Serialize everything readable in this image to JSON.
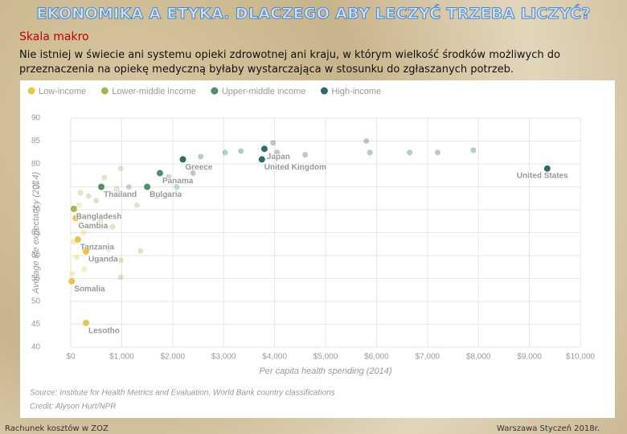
{
  "slide": {
    "title": "EKONOMIKA A ETYKA. DLACZEGO ABY LECZYĆ TRZEBA LICZYĆ?",
    "subtitle": "Skala makro",
    "text": "Nie istniej w świecie ani systemu opieki zdrowotnej ani kraju, w którym wielkość środków możliwych do przeznaczenia na opiekę medyczną byłaby wystarczająca w stosunku do zgłaszanych potrzeb.",
    "footer_left": "Rachunek kosztów w ZOZ",
    "footer_right": "Warszawa Styczeń 2018r."
  },
  "chart_data": {
    "type": "scatter",
    "x_label": "Per capita health spending (2014)",
    "y_label": "Average life expectancy (2014)",
    "source": "Source: Institute for Health Metrics and Evaluation, World Bank country classifications",
    "credit": "Credit: Alyson Hurt/NPR",
    "xlim": [
      0,
      10000
    ],
    "ylim": [
      40,
      90
    ],
    "xticks": [
      {
        "value": 0,
        "label": "$0"
      },
      {
        "value": 1000,
        "label": "$1,000"
      },
      {
        "value": 2000,
        "label": "$2,000"
      },
      {
        "value": 3000,
        "label": "$3,000"
      },
      {
        "value": 4000,
        "label": "$4,000"
      },
      {
        "value": 5000,
        "label": "$5,000"
      },
      {
        "value": 6000,
        "label": "$6,000"
      },
      {
        "value": 7000,
        "label": "$7,000"
      },
      {
        "value": 8000,
        "label": "$8,000"
      },
      {
        "value": 9000,
        "label": "$9,000"
      },
      {
        "value": 10000,
        "label": "$10,000"
      }
    ],
    "yticks": [
      40,
      45,
      50,
      55,
      60,
      65,
      70,
      75,
      80,
      85,
      90
    ],
    "grid": true,
    "legend": "top",
    "series": [
      {
        "name": "Low-income",
        "color": "#e8c547",
        "x": [
          100,
          140,
          300,
          20,
          300,
          190,
          110,
          250,
          60,
          350,
          160,
          430,
          30,
          270
        ],
        "values": [
          68.2,
          63.5,
          60.9,
          54.4,
          45.3,
          66.7,
          59.6,
          65,
          63,
          68.4,
          71,
          62,
          56,
          57
        ],
        "labels": [
          "Gambia",
          "Tanzania",
          "Uganda",
          "Somalia",
          "Lesotho",
          null,
          null,
          null,
          null,
          null,
          null,
          null,
          null,
          null
        ]
      },
      {
        "name": "Lower-middle income",
        "color": "#a9b35a",
        "x": [
          60,
          660,
          900,
          500,
          350,
          980,
          1300,
          580,
          980,
          1370,
          820,
          740,
          190,
          980
        ],
        "values": [
          70.2,
          77,
          74.6,
          72,
          73,
          79,
          71,
          67.5,
          59,
          61,
          66.3,
          61.4,
          73.7,
          55.3
        ],
        "labels": [
          "Bangladesh",
          null,
          null,
          null,
          null,
          null,
          null,
          null,
          null,
          null,
          null,
          null,
          null,
          null
        ]
      },
      {
        "name": "Upper-middle income",
        "color": "#4f8f6a",
        "x": [
          600,
          1750,
          1500,
          1920,
          2080,
          1690,
          1140
        ],
        "values": [
          75,
          78,
          75,
          77.2,
          75,
          73,
          75
        ],
        "labels": [
          "Thailand",
          "Panama",
          "Bulgaria",
          null,
          null,
          null,
          null
        ]
      },
      {
        "name": "High-income",
        "color": "#2e6b6b",
        "x": [
          3800,
          3750,
          9350,
          2200,
          2400,
          2550,
          3030,
          3340,
          4050,
          4600,
          5870,
          6650,
          7200,
          7900,
          5800,
          3970
        ],
        "values": [
          83.3,
          81,
          79,
          81,
          78,
          81.6,
          82.5,
          82.8,
          82.5,
          82,
          82.5,
          82.5,
          82.5,
          83,
          85,
          84.6
        ],
        "labels": [
          "Japan",
          "United Kingdom",
          "United States",
          "Greece",
          null,
          null,
          null,
          null,
          null,
          null,
          null,
          null,
          null,
          null,
          null,
          null
        ]
      }
    ]
  }
}
